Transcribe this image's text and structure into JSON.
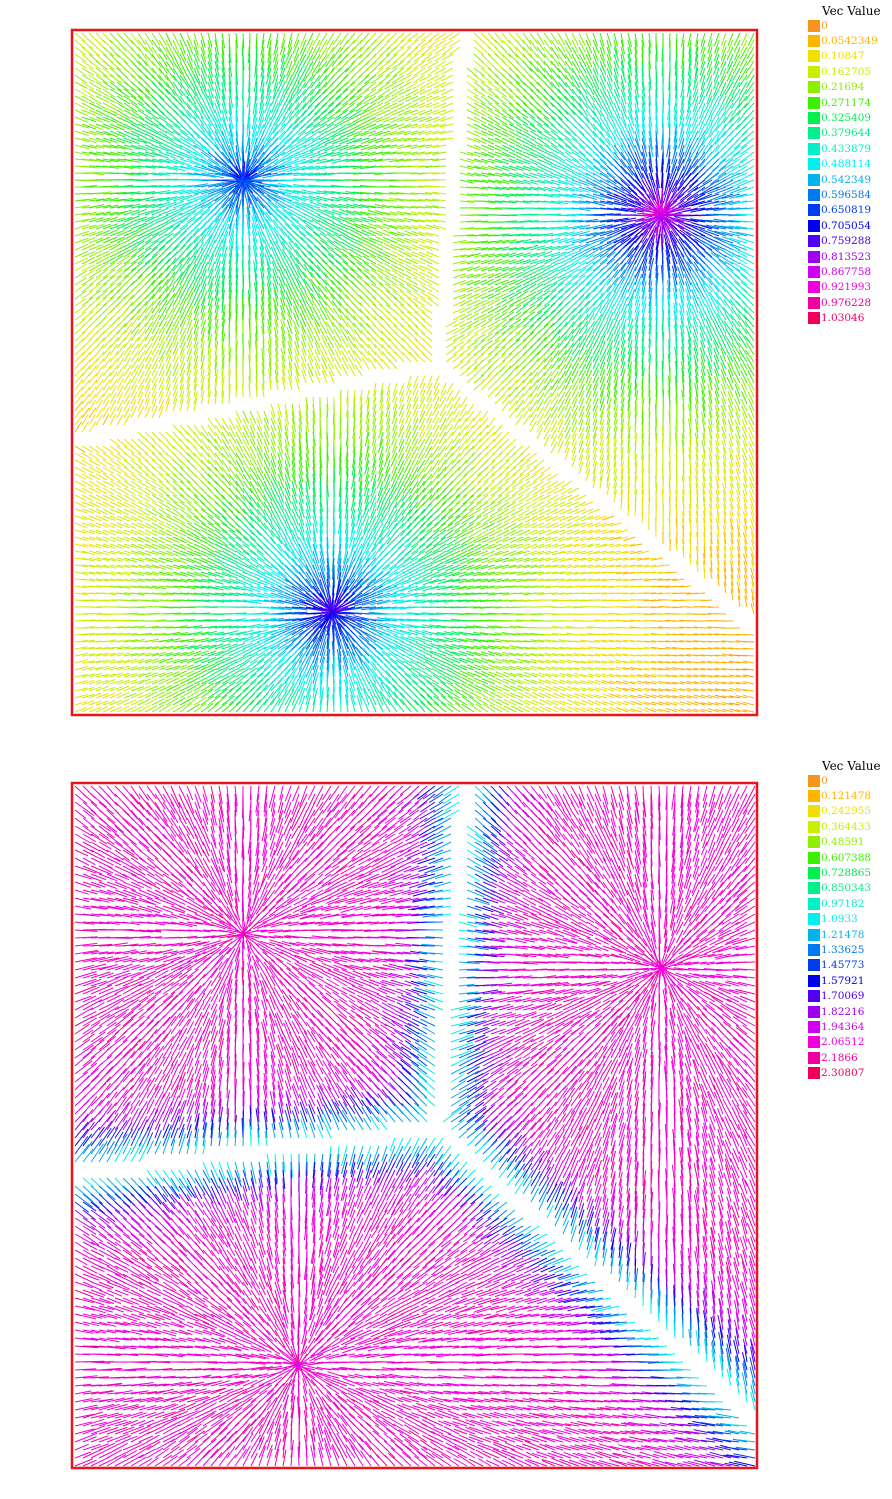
{
  "chart_data": [
    {
      "type": "vector-field",
      "legend_title": "Vec Value",
      "colorbar": [
        {
          "value": "0",
          "color": "#f7941d"
        },
        {
          "value": "0.0542349",
          "color": "#ffb400"
        },
        {
          "value": "0.10847",
          "color": "#f0e000"
        },
        {
          "value": "0.162705",
          "color": "#c8f000"
        },
        {
          "value": "0.21694",
          "color": "#8cf000"
        },
        {
          "value": "0.271174",
          "color": "#3cf000"
        },
        {
          "value": "0.325409",
          "color": "#00f050"
        },
        {
          "value": "0.379644",
          "color": "#00f08c"
        },
        {
          "value": "0.433879",
          "color": "#00f0c8"
        },
        {
          "value": "0.488114",
          "color": "#00f0f0"
        },
        {
          "value": "0.542349",
          "color": "#00b4f0"
        },
        {
          "value": "0.596584",
          "color": "#0078f0"
        },
        {
          "value": "0.650819",
          "color": "#003cf0"
        },
        {
          "value": "0.705054",
          "color": "#0000f0"
        },
        {
          "value": "0.759288",
          "color": "#5000f0"
        },
        {
          "value": "0.813523",
          "color": "#a000f0"
        },
        {
          "value": "0.867758",
          "color": "#d200f0"
        },
        {
          "value": "0.921993",
          "color": "#f000dc"
        },
        {
          "value": "0.976228",
          "color": "#f000a0"
        },
        {
          "value": "1.03046",
          "color": "#f0005a"
        }
      ],
      "sources": [
        {
          "x": 0.25,
          "y": 0.78,
          "name": "",
          "peak": 0.76
        },
        {
          "x": 0.86,
          "y": 0.73,
          "name": "",
          "peak": 1.0
        },
        {
          "x": 0.38,
          "y": 0.15,
          "name": "",
          "peak": 0.85
        }
      ],
      "frame_color": "#e8141c"
    },
    {
      "type": "vector-field",
      "legend_title": "Vec Value",
      "colorbar": [
        {
          "value": "0",
          "color": "#f7941d"
        },
        {
          "value": "0.121478",
          "color": "#ffb400"
        },
        {
          "value": "0.242955",
          "color": "#f0e000"
        },
        {
          "value": "0.364433",
          "color": "#c8f000"
        },
        {
          "value": "0.48591",
          "color": "#8cf000"
        },
        {
          "value": "0.607388",
          "color": "#3cf000"
        },
        {
          "value": "0.728865",
          "color": "#00f050"
        },
        {
          "value": "0.850343",
          "color": "#00f08c"
        },
        {
          "value": "0.97182",
          "color": "#00f0c8"
        },
        {
          "value": "1.0933",
          "color": "#00f0f0"
        },
        {
          "value": "1.21478",
          "color": "#00b4f0"
        },
        {
          "value": "1.33625",
          "color": "#0078f0"
        },
        {
          "value": "1.45773",
          "color": "#003cf0"
        },
        {
          "value": "1.57921",
          "color": "#0000f0"
        },
        {
          "value": "1.70069",
          "color": "#5000f0"
        },
        {
          "value": "1.82216",
          "color": "#a000f0"
        },
        {
          "value": "1.94364",
          "color": "#d200f0"
        },
        {
          "value": "2.06512",
          "color": "#f000dc"
        },
        {
          "value": "2.1866",
          "color": "#f000a0"
        },
        {
          "value": "2.30807",
          "color": "#f0005a"
        }
      ],
      "sources": [
        {
          "x": 0.25,
          "y": 0.78,
          "name": "",
          "peak": 2.1
        },
        {
          "x": 0.86,
          "y": 0.73,
          "name": "",
          "peak": 2.1
        },
        {
          "x": 0.33,
          "y": 0.15,
          "name": "",
          "peak": 2.1
        }
      ],
      "frame_color": "#e8141c"
    }
  ]
}
